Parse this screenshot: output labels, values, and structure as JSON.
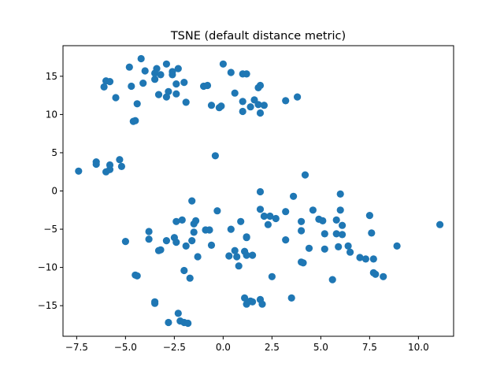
{
  "chart_data": {
    "type": "scatter",
    "title": "TSNE (default distance metric)",
    "xlabel": "",
    "ylabel": "",
    "xlim": [
      -8.2,
      11.8
    ],
    "ylim": [
      -19.0,
      19.0
    ],
    "xticks": [
      -7.5,
      -5.0,
      -2.5,
      0.0,
      2.5,
      5.0,
      7.5,
      10.0
    ],
    "xtick_labels": [
      "−7.5",
      "−5.0",
      "−2.5",
      "0.0",
      "2.5",
      "5.0",
      "7.5",
      "10.0"
    ],
    "yticks": [
      -15,
      -10,
      -5,
      0,
      5,
      10,
      15
    ],
    "ytick_labels": [
      "−15",
      "−10",
      "−5",
      "0",
      "5",
      "10",
      "15"
    ],
    "grid": false,
    "marker_color": "#1f77b4",
    "points": [
      [
        -4.8,
        16.2
      ],
      [
        -4.2,
        17.3
      ],
      [
        -4.0,
        15.7
      ],
      [
        -3.5,
        15.4
      ],
      [
        -3.4,
        16.0
      ],
      [
        -2.9,
        16.6
      ],
      [
        -2.6,
        15.6
      ],
      [
        -2.3,
        16.0
      ],
      [
        -6.0,
        14.4
      ],
      [
        -5.8,
        14.3
      ],
      [
        -6.1,
        13.6
      ],
      [
        -4.7,
        13.7
      ],
      [
        -4.1,
        14.1
      ],
      [
        -3.5,
        14.6
      ],
      [
        -3.2,
        15.2
      ],
      [
        -2.6,
        15.2
      ],
      [
        -2.4,
        14.0
      ],
      [
        -2.0,
        14.2
      ],
      [
        -5.5,
        12.2
      ],
      [
        -4.4,
        11.4
      ],
      [
        -3.3,
        12.6
      ],
      [
        -2.9,
        12.3
      ],
      [
        -2.8,
        13.0
      ],
      [
        -2.4,
        12.7
      ],
      [
        -1.9,
        11.6
      ],
      [
        -4.6,
        9.1
      ],
      [
        -4.5,
        9.2
      ],
      [
        0.0,
        16.6
      ],
      [
        0.4,
        15.5
      ],
      [
        1.0,
        15.3
      ],
      [
        1.2,
        15.3
      ],
      [
        1.8,
        13.5
      ],
      [
        1.9,
        13.8
      ],
      [
        -1.0,
        13.7
      ],
      [
        -0.8,
        13.8
      ],
      [
        0.6,
        12.8
      ],
      [
        -0.6,
        11.2
      ],
      [
        -0.2,
        10.9
      ],
      [
        -0.1,
        11.1
      ],
      [
        1.0,
        11.7
      ],
      [
        1.0,
        10.4
      ],
      [
        1.4,
        11.0
      ],
      [
        1.6,
        11.9
      ],
      [
        1.8,
        11.3
      ],
      [
        2.1,
        11.2
      ],
      [
        1.9,
        10.2
      ],
      [
        3.2,
        11.8
      ],
      [
        3.8,
        12.3
      ],
      [
        -7.4,
        2.6
      ],
      [
        -6.5,
        3.8
      ],
      [
        -6.5,
        3.5
      ],
      [
        -6.0,
        2.5
      ],
      [
        -5.8,
        2.8
      ],
      [
        -5.8,
        3.4
      ],
      [
        -5.3,
        4.1
      ],
      [
        -5.2,
        3.2
      ],
      [
        -0.4,
        4.6
      ],
      [
        4.2,
        2.1
      ],
      [
        1.9,
        -0.1
      ],
      [
        3.6,
        -0.7
      ],
      [
        6.0,
        -0.4
      ],
      [
        -1.6,
        -1.3
      ],
      [
        -0.3,
        -2.6
      ],
      [
        1.9,
        -2.4
      ],
      [
        2.1,
        -3.3
      ],
      [
        2.4,
        -3.3
      ],
      [
        3.2,
        -2.7
      ],
      [
        4.6,
        -2.5
      ],
      [
        6.0,
        -2.5
      ],
      [
        7.5,
        -3.2
      ],
      [
        -2.4,
        -4.0
      ],
      [
        -2.1,
        -3.8
      ],
      [
        -1.4,
        -3.9
      ],
      [
        -1.5,
        -4.3
      ],
      [
        0.9,
        -4.0
      ],
      [
        2.7,
        -3.6
      ],
      [
        2.3,
        -4.4
      ],
      [
        4.0,
        -4.0
      ],
      [
        4.9,
        -3.7
      ],
      [
        5.1,
        -3.9
      ],
      [
        5.8,
        -3.8
      ],
      [
        6.1,
        -4.5
      ],
      [
        -3.8,
        -5.3
      ],
      [
        -2.5,
        -6.1
      ],
      [
        -1.5,
        -5.4
      ],
      [
        -0.9,
        -5.1
      ],
      [
        -0.7,
        -5.1
      ],
      [
        0.4,
        -5.0
      ],
      [
        1.2,
        -6.0
      ],
      [
        3.2,
        -6.4
      ],
      [
        4.0,
        -5.2
      ],
      [
        5.2,
        -5.6
      ],
      [
        5.8,
        -5.6
      ],
      [
        6.1,
        -5.7
      ],
      [
        7.6,
        -5.5
      ],
      [
        -5.0,
        -6.6
      ],
      [
        -3.8,
        -6.3
      ],
      [
        -2.9,
        -6.5
      ],
      [
        -2.4,
        -6.7
      ],
      [
        -1.6,
        -6.5
      ],
      [
        -1.9,
        -7.2
      ],
      [
        -0.6,
        -7.1
      ],
      [
        1.2,
        -6.1
      ],
      [
        4.4,
        -7.5
      ],
      [
        5.2,
        -7.6
      ],
      [
        5.9,
        -7.3
      ],
      [
        6.4,
        -7.2
      ],
      [
        6.5,
        -8.0
      ],
      [
        8.9,
        -7.2
      ],
      [
        -3.2,
        -7.7
      ],
      [
        -3.3,
        -7.8
      ],
      [
        -1.3,
        -8.6
      ],
      [
        0.3,
        -8.5
      ],
      [
        0.6,
        -7.8
      ],
      [
        0.7,
        -8.6
      ],
      [
        1.1,
        -7.9
      ],
      [
        1.2,
        -8.4
      ],
      [
        1.5,
        -8.4
      ],
      [
        7.0,
        -8.7
      ],
      [
        7.3,
        -8.9
      ],
      [
        7.7,
        -8.9
      ],
      [
        0.8,
        -9.8
      ],
      [
        4.0,
        -9.3
      ],
      [
        4.1,
        -9.4
      ],
      [
        -2.0,
        -10.4
      ],
      [
        7.7,
        -10.7
      ],
      [
        7.8,
        -10.9
      ],
      [
        8.2,
        -11.2
      ],
      [
        -4.5,
        -11.0
      ],
      [
        -4.4,
        -11.1
      ],
      [
        -1.7,
        -11.4
      ],
      [
        2.5,
        -11.2
      ],
      [
        5.6,
        -11.6
      ],
      [
        11.1,
        -4.4
      ],
      [
        1.1,
        -14.0
      ],
      [
        1.2,
        -14.8
      ],
      [
        1.4,
        -14.4
      ],
      [
        1.5,
        -14.5
      ],
      [
        1.9,
        -14.2
      ],
      [
        2.0,
        -14.8
      ],
      [
        3.5,
        -14.0
      ],
      [
        -3.5,
        -14.5
      ],
      [
        -3.5,
        -14.7
      ],
      [
        -2.3,
        -16.0
      ],
      [
        -2.2,
        -17.0
      ],
      [
        -2.8,
        -17.2
      ],
      [
        -2.0,
        -17.2
      ],
      [
        -1.8,
        -17.3
      ]
    ]
  }
}
